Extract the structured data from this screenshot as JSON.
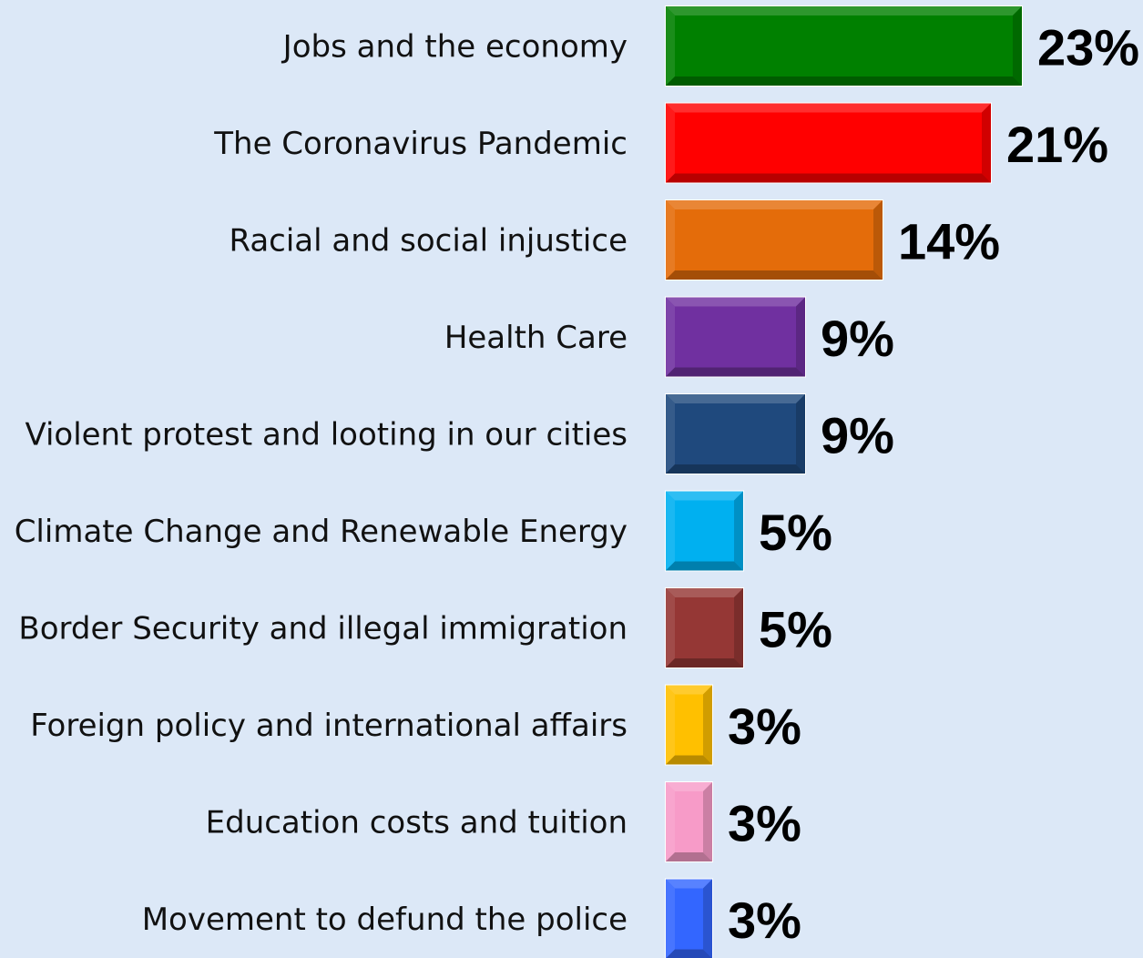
{
  "chart_data": {
    "type": "bar",
    "orientation": "horizontal",
    "categories": [
      "Jobs and the economy",
      "The Coronavirus Pandemic",
      "Racial and social injustice",
      "Health Care",
      "Violent protest and looting in our cities",
      "Climate Change and Renewable Energy",
      "Border Security and illegal immigration",
      "Foreign policy and international affairs",
      "Education costs and tuition",
      "Movement to defund the police"
    ],
    "values": [
      23,
      21,
      14,
      9,
      9,
      5,
      5,
      3,
      3,
      3
    ],
    "value_labels": [
      "23%",
      "21%",
      "14%",
      "9%",
      "9%",
      "5%",
      "5%",
      "3%",
      "3%",
      "3%"
    ],
    "colors": [
      "#008000",
      "#ff0000",
      "#e46c0a",
      "#7030a0",
      "#1f497d",
      "#00b0f0",
      "#953735",
      "#ffc000",
      "#f79bc8",
      "#3366ff"
    ],
    "title": "",
    "xlabel": "",
    "ylabel": "",
    "grid": false,
    "legend": "none"
  }
}
